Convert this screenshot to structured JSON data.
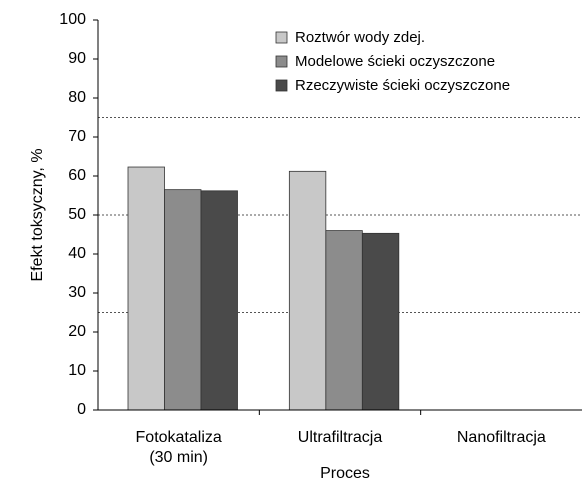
{
  "chart_data": {
    "type": "bar",
    "categories": [
      "Fotokataliza\n(30 min)",
      "Ultrafiltracja",
      "Nanofiltracja"
    ],
    "series": [
      {
        "name": "Roztwór wody zdej.",
        "color": "#c8c8c8",
        "values": [
          62.3,
          61.2,
          0
        ]
      },
      {
        "name": "Modelowe ścieki oczyszczone",
        "color": "#8c8c8c",
        "values": [
          56.5,
          46.0,
          0
        ]
      },
      {
        "name": "Rzeczywiste ścieki oczyszczone",
        "color": "#4a4a4a",
        "values": [
          56.2,
          45.3,
          0
        ]
      }
    ],
    "x_label": "Proces",
    "y_label": "Efekt toksyczny, %",
    "ylim": [
      0,
      100
    ],
    "yticks": [
      0,
      10,
      20,
      30,
      40,
      50,
      60,
      70,
      80,
      90,
      100
    ],
    "reference_lines": [
      75,
      50,
      25
    ],
    "legend": "top-right",
    "grid": false
  }
}
